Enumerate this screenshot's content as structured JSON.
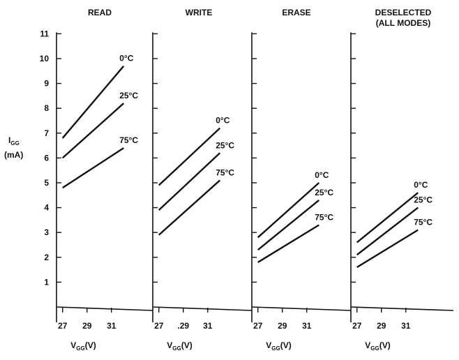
{
  "chart_data": {
    "type": "line",
    "ylabel_line1": "I",
    "ylabel_sub": "GG",
    "ylabel_line2": "(mA)",
    "xlabel_main": "V",
    "xlabel_sub": "GG",
    "xlabel_unit": "(V)",
    "ylim": [
      0,
      11
    ],
    "yticks": [
      1,
      2,
      3,
      4,
      5,
      6,
      7,
      8,
      9,
      10,
      11
    ],
    "xlim": [
      26.5,
      34.5
    ],
    "panels": [
      {
        "title": [
          "READ"
        ],
        "xtick_labels": [
          "27",
          "29",
          "31"
        ],
        "series": [
          {
            "name": "0°C",
            "x": [
              27,
              32
            ],
            "y": [
              6.8,
              9.7
            ]
          },
          {
            "name": "25°C",
            "x": [
              27,
              32
            ],
            "y": [
              6.0,
              8.2
            ]
          },
          {
            "name": "75°C",
            "x": [
              27,
              32
            ],
            "y": [
              4.8,
              6.4
            ]
          }
        ]
      },
      {
        "title": [
          "WRITE"
        ],
        "xtick_labels": [
          "27",
          ".29",
          "31"
        ],
        "series": [
          {
            "name": "0°C",
            "x": [
              27,
              32
            ],
            "y": [
              4.9,
              7.2
            ]
          },
          {
            "name": "25°C",
            "x": [
              27,
              32
            ],
            "y": [
              3.9,
              6.2
            ]
          },
          {
            "name": "75°C",
            "x": [
              27,
              32
            ],
            "y": [
              2.9,
              5.1
            ]
          }
        ]
      },
      {
        "title": [
          "ERASE"
        ],
        "xtick_labels": [
          "27",
          "29",
          "31"
        ],
        "series": [
          {
            "name": "0°C",
            "x": [
              27,
              32
            ],
            "y": [
              2.8,
              5.0
            ]
          },
          {
            "name": "25°C",
            "x": [
              27,
              32
            ],
            "y": [
              2.3,
              4.3
            ]
          },
          {
            "name": "75°C",
            "x": [
              27,
              32
            ],
            "y": [
              1.8,
              3.3
            ]
          }
        ]
      },
      {
        "title": [
          "DESELECTED",
          "(ALL MODES)"
        ],
        "xtick_labels": [
          "27",
          "29",
          "31"
        ],
        "series": [
          {
            "name": "0°C",
            "x": [
              27,
              32
            ],
            "y": [
              2.6,
              4.6
            ]
          },
          {
            "name": "25°C",
            "x": [
              27,
              32
            ],
            "y": [
              2.1,
              4.0
            ]
          },
          {
            "name": "75°C",
            "x": [
              27,
              32
            ],
            "y": [
              1.6,
              3.1
            ]
          }
        ]
      }
    ]
  }
}
